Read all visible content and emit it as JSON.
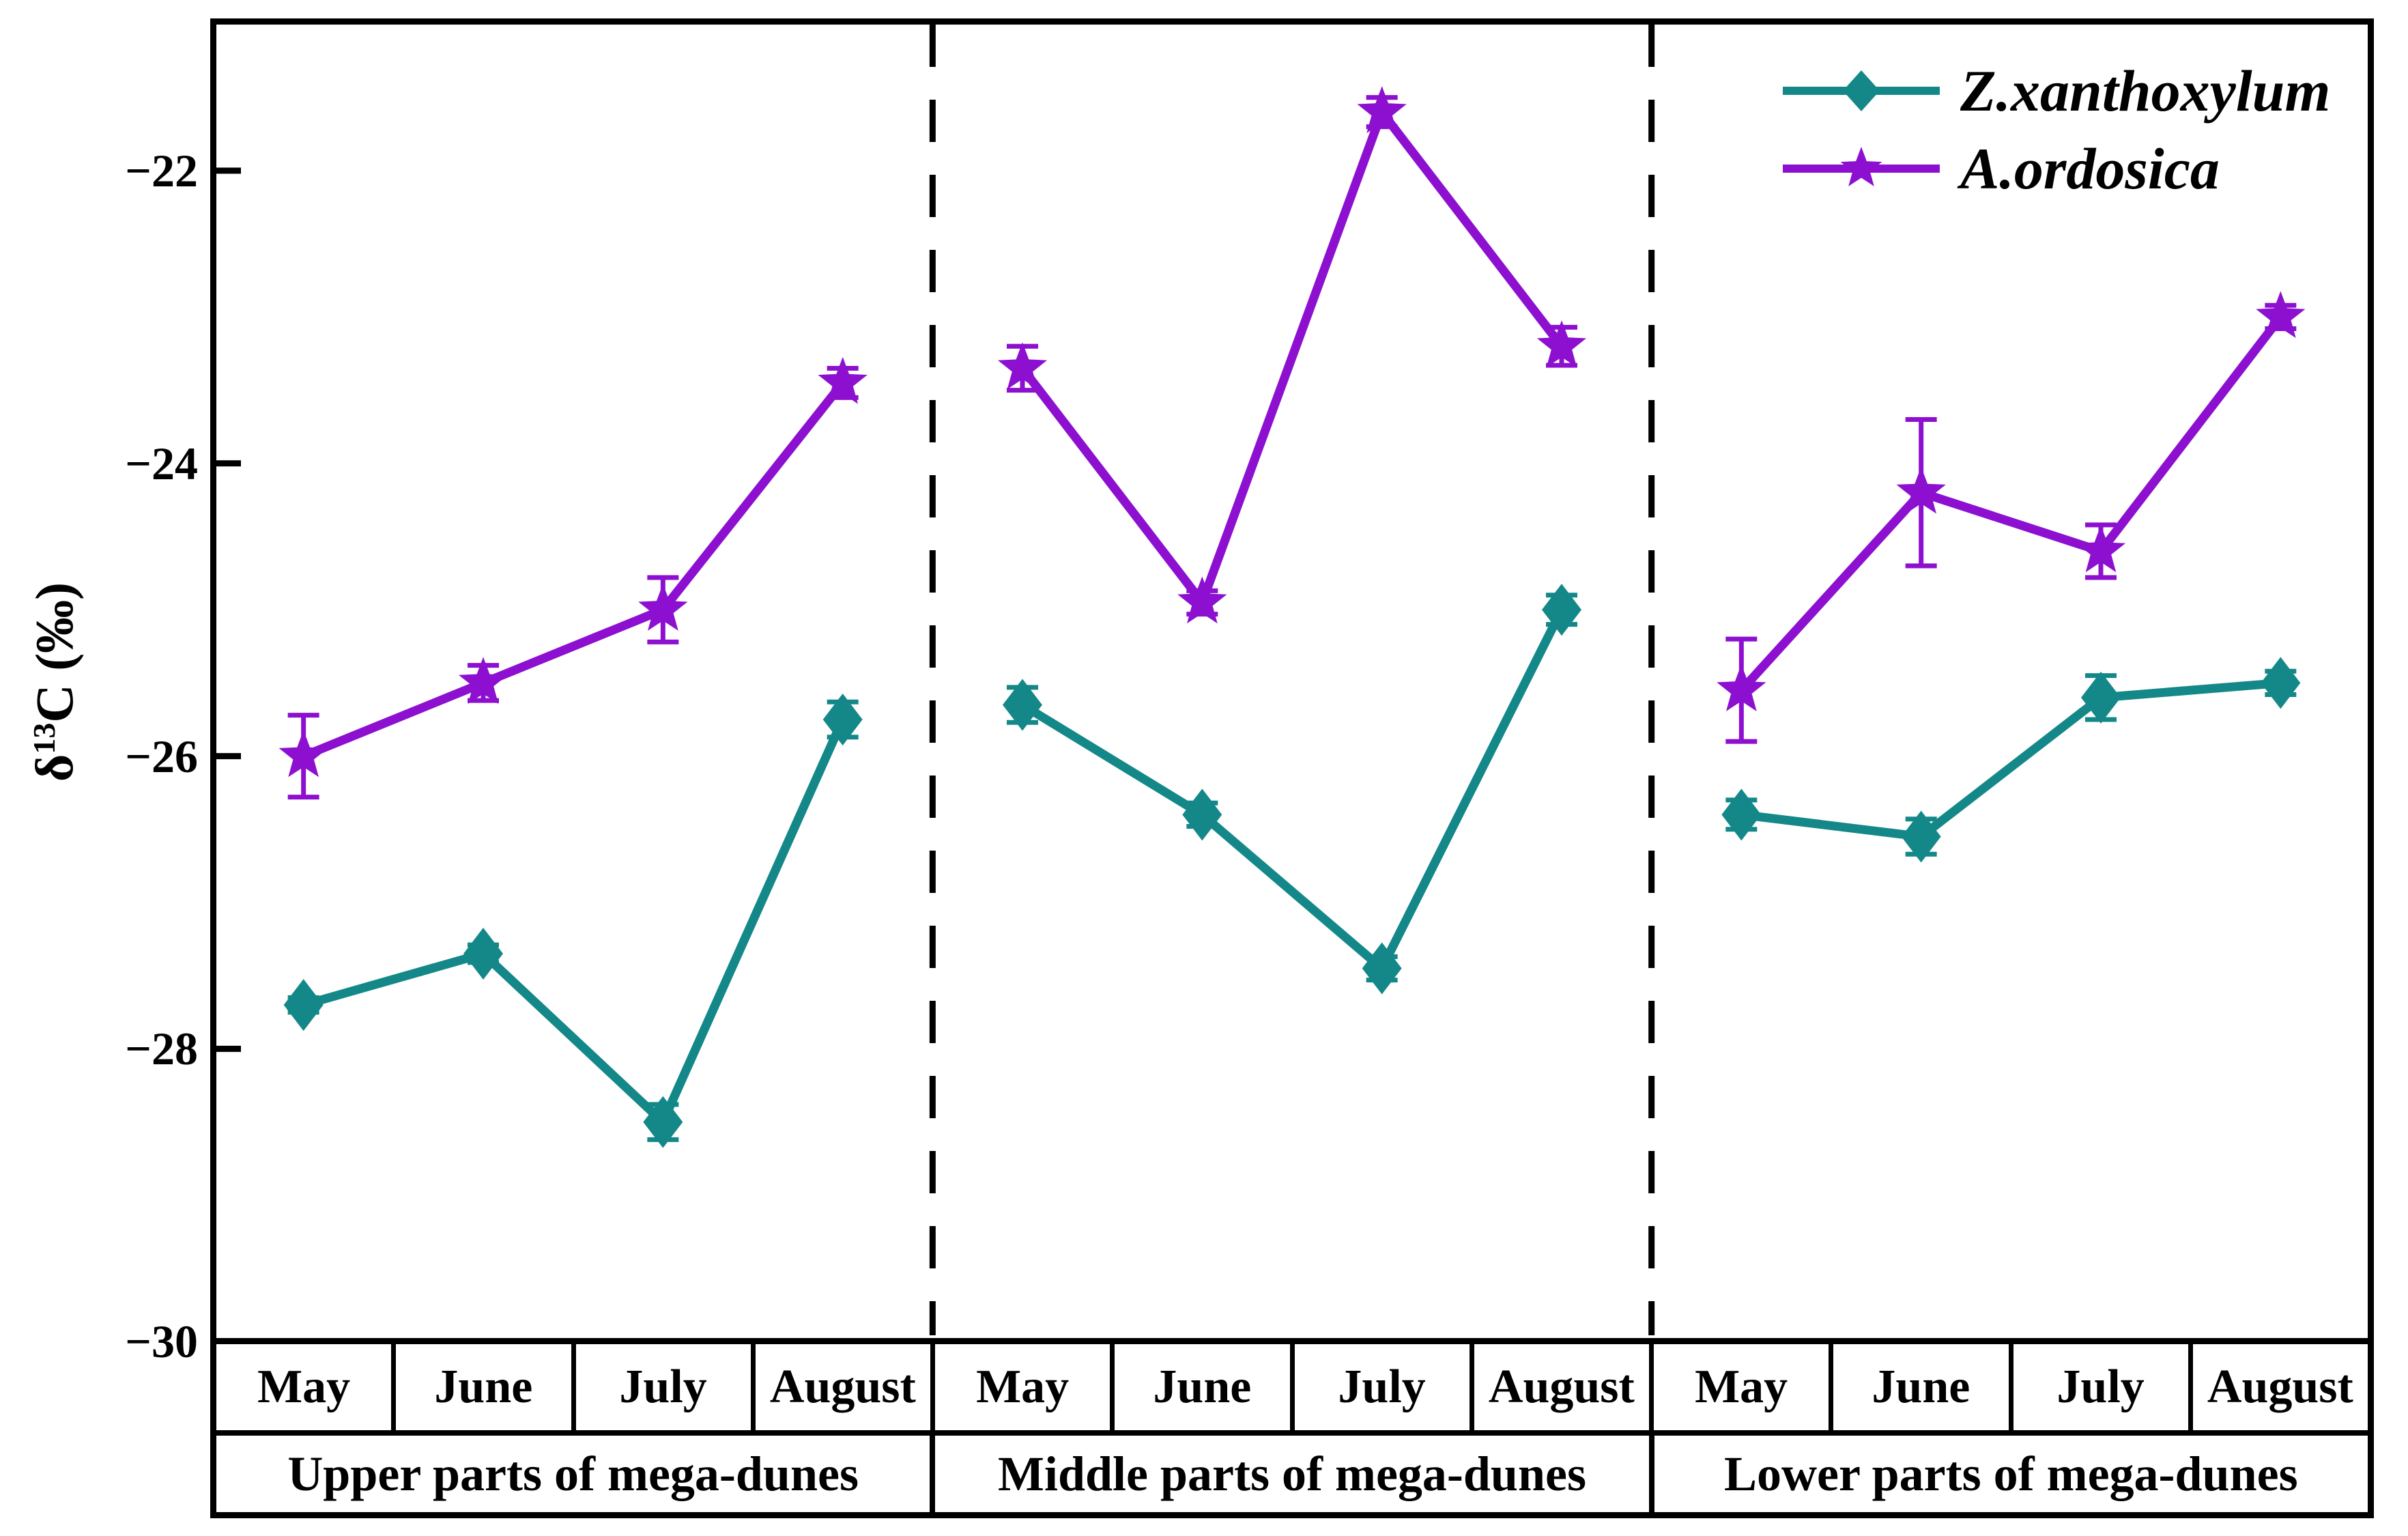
{
  "y_axis": {
    "title_delta": "δ",
    "title_sup": "13",
    "title_rest": "C (‰)",
    "tick_labels": [
      "−22",
      "−24",
      "−26",
      "−28",
      "−30"
    ]
  },
  "months": [
    "May",
    "June",
    "July",
    "August"
  ],
  "legend": {
    "items": [
      {
        "label": "Z.xanthoxylum",
        "marker": "diamond-icon",
        "color": "#148888"
      },
      {
        "label": "A.ordosica",
        "marker": "star-icon",
        "color": "#8D10D0"
      }
    ]
  },
  "chart_data": {
    "type": "line",
    "title": "",
    "xlabel": "",
    "ylabel": "δ13C (‰)",
    "ylim": [
      -30,
      -21
    ],
    "yticks": [
      -22,
      -24,
      -26,
      -28,
      -30
    ],
    "grid": false,
    "legend_position": "top-right",
    "categories": [
      "May",
      "June",
      "July",
      "August"
    ],
    "panel_separator_style": "dashed",
    "panels": [
      {
        "label": "Upper parts of mega-dunes",
        "series": [
          {
            "name": "Z.xanthoxylum",
            "color": "#148888",
            "marker": "diamond",
            "values": [
              -27.7,
              -27.35,
              -28.5,
              -25.75
            ],
            "errors": [
              0.05,
              0.06,
              0.12,
              0.12
            ]
          },
          {
            "name": "A.ordosica",
            "color": "#8D10D0",
            "marker": "star",
            "values": [
              -26.0,
              -25.5,
              -25.0,
              -23.45
            ],
            "errors": [
              0.28,
              0.12,
              0.22,
              0.1
            ]
          }
        ]
      },
      {
        "label": "Middle parts of mega-dunes",
        "series": [
          {
            "name": "Z.xanthoxylum",
            "color": "#148888",
            "marker": "diamond",
            "values": [
              -25.65,
              -26.4,
              -27.45,
              -25.0
            ],
            "errors": [
              0.12,
              0.08,
              0.08,
              0.1
            ]
          },
          {
            "name": "A.ordosica",
            "color": "#8D10D0",
            "marker": "star",
            "values": [
              -23.35,
              -24.95,
              -21.6,
              -23.2
            ],
            "errors": [
              0.15,
              0.08,
              0.1,
              0.13
            ]
          }
        ]
      },
      {
        "label": "Lower parts of mega-dunes",
        "series": [
          {
            "name": "Z.xanthoxylum",
            "color": "#148888",
            "marker": "diamond",
            "values": [
              -26.4,
              -26.55,
              -25.6,
              -25.5
            ],
            "errors": [
              0.1,
              0.12,
              0.15,
              0.08
            ]
          },
          {
            "name": "A.ordosica",
            "color": "#8D10D0",
            "marker": "star",
            "values": [
              -25.55,
              -24.2,
              -24.6,
              -23.0
            ],
            "errors": [
              0.35,
              0.5,
              0.18,
              0.08
            ]
          }
        ]
      }
    ]
  }
}
